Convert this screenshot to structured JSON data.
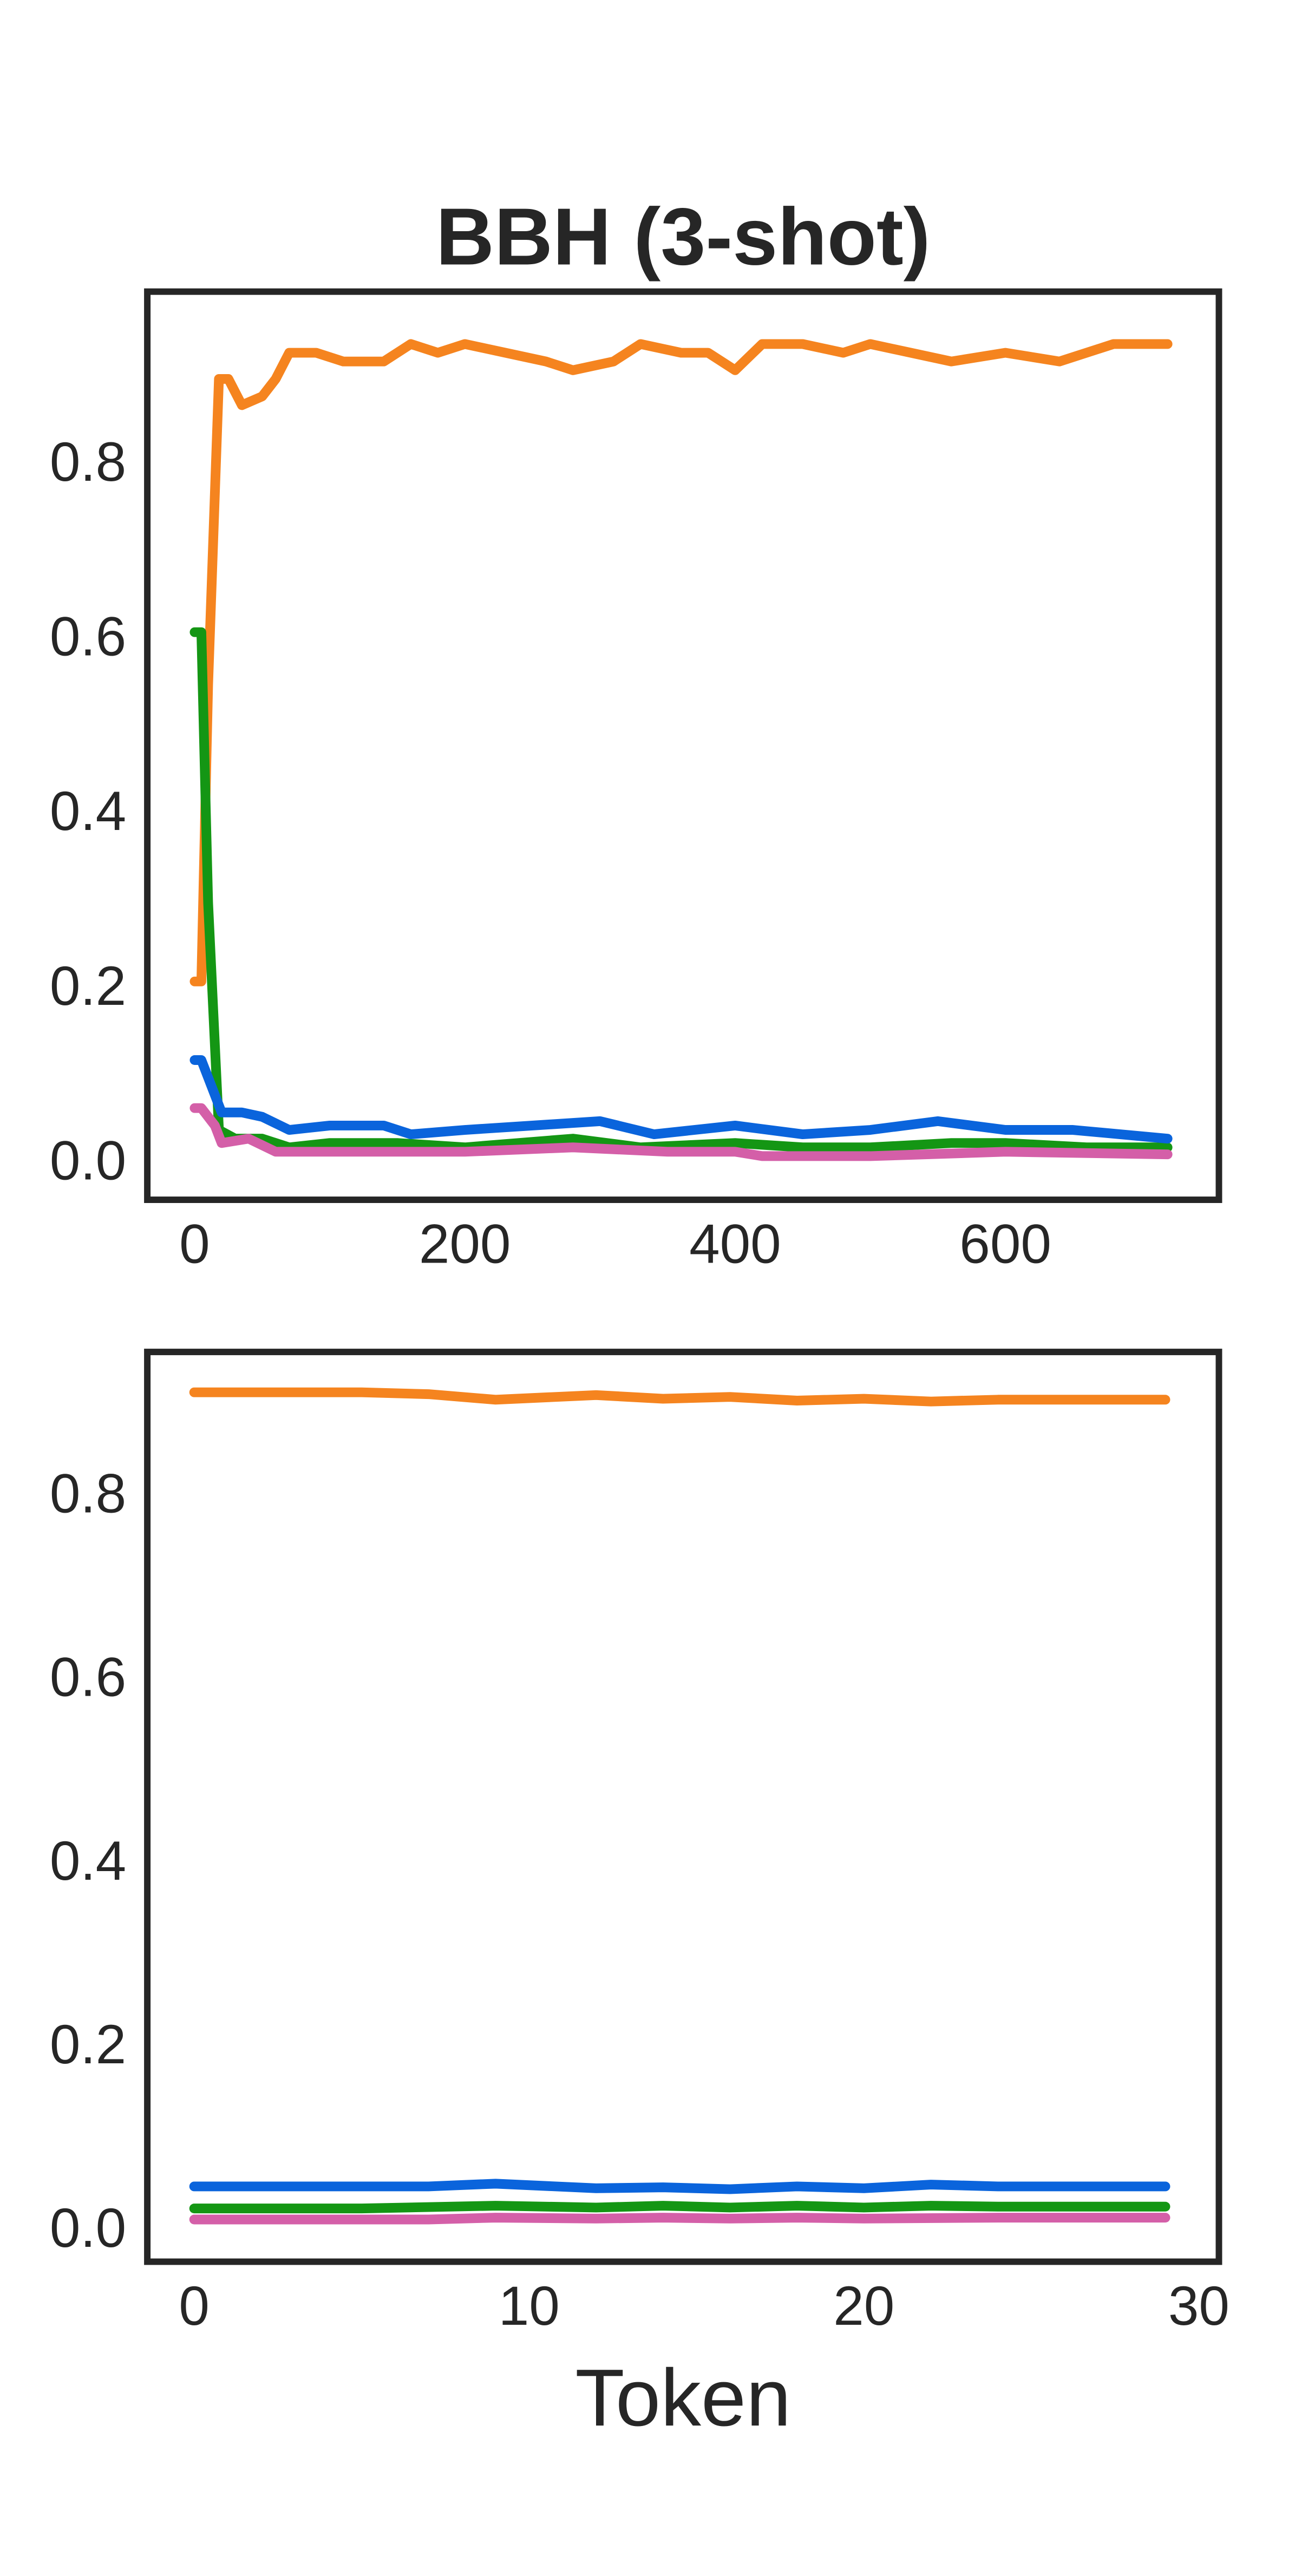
{
  "chart_data": [
    {
      "type": "line",
      "title": "BBH (3-shot)",
      "xlim": [
        -35,
        758
      ],
      "ylim": [
        -0.04,
        1.0
      ],
      "xticks": [
        0,
        200,
        400,
        600
      ],
      "yticks": [
        {
          "value": 0,
          "label": "0.0"
        },
        0.2,
        0.4,
        0.6,
        0.8
      ],
      "series": [
        {
          "color": "#f5841f",
          "x": [
            0,
            5,
            10,
            18,
            25,
            35,
            50,
            60,
            70,
            90,
            110,
            140,
            160,
            180,
            200,
            230,
            260,
            280,
            310,
            330,
            360,
            380,
            400,
            420,
            450,
            480,
            500,
            530,
            560,
            600,
            640,
            680,
            720
          ],
          "values": [
            0.21,
            0.21,
            0.55,
            0.9,
            0.9,
            0.87,
            0.88,
            0.9,
            0.93,
            0.93,
            0.92,
            0.92,
            0.94,
            0.93,
            0.94,
            0.93,
            0.92,
            0.91,
            0.92,
            0.94,
            0.93,
            0.93,
            0.91,
            0.94,
            0.94,
            0.93,
            0.94,
            0.93,
            0.92,
            0.93,
            0.92,
            0.94,
            0.94
          ]
        },
        {
          "color": "#149614",
          "x": [
            0,
            5,
            10,
            18,
            30,
            50,
            70,
            100,
            150,
            200,
            280,
            330,
            400,
            450,
            500,
            560,
            600,
            660,
            720
          ],
          "values": [
            0.61,
            0.61,
            0.3,
            0.04,
            0.03,
            0.03,
            0.02,
            0.025,
            0.025,
            0.02,
            0.03,
            0.02,
            0.025,
            0.02,
            0.02,
            0.025,
            0.025,
            0.02,
            0.02
          ]
        },
        {
          "color": "#0a64dc",
          "x": [
            0,
            5,
            10,
            20,
            35,
            50,
            70,
            100,
            140,
            160,
            200,
            250,
            300,
            340,
            400,
            450,
            500,
            550,
            600,
            650,
            720
          ],
          "values": [
            0.12,
            0.12,
            0.1,
            0.06,
            0.06,
            0.055,
            0.04,
            0.045,
            0.045,
            0.035,
            0.04,
            0.045,
            0.05,
            0.035,
            0.045,
            0.035,
            0.04,
            0.05,
            0.04,
            0.04,
            0.03
          ]
        },
        {
          "color": "#d45fa8",
          "x": [
            0,
            5,
            15,
            20,
            40,
            60,
            100,
            200,
            280,
            350,
            400,
            420,
            500,
            600,
            720
          ],
          "values": [
            0.065,
            0.065,
            0.045,
            0.025,
            0.03,
            0.015,
            0.015,
            0.015,
            0.02,
            0.015,
            0.015,
            0.01,
            0.01,
            0.015,
            0.012
          ]
        }
      ]
    },
    {
      "type": "line",
      "x_label": "Token",
      "xlim": [
        -1.4,
        30.6
      ],
      "ylim": [
        -0.032,
        0.959
      ],
      "xticks": [
        0,
        10,
        20,
        30
      ],
      "yticks": [
        {
          "value": 0,
          "label": "0.0"
        },
        0.2,
        0.4,
        0.6,
        0.8
      ],
      "series": [
        {
          "color": "#f5841f",
          "x": [
            0,
            5,
            7,
            9,
            12,
            14,
            16,
            18,
            20,
            22,
            24,
            29
          ],
          "values": [
            0.915,
            0.915,
            0.913,
            0.907,
            0.912,
            0.908,
            0.91,
            0.906,
            0.908,
            0.905,
            0.907,
            0.907
          ]
        },
        {
          "color": "#0a64dc",
          "x": [
            0,
            7,
            9,
            12,
            14,
            16,
            18,
            20,
            22,
            24,
            29
          ],
          "values": [
            0.05,
            0.05,
            0.053,
            0.048,
            0.049,
            0.047,
            0.05,
            0.048,
            0.052,
            0.05,
            0.05
          ]
        },
        {
          "color": "#149614",
          "x": [
            0,
            5,
            9,
            12,
            14,
            16,
            18,
            20,
            22,
            24,
            29
          ],
          "values": [
            0.026,
            0.026,
            0.029,
            0.027,
            0.029,
            0.027,
            0.029,
            0.027,
            0.029,
            0.028,
            0.028
          ]
        },
        {
          "color": "#d45fa8",
          "x": [
            0,
            7,
            9,
            12,
            14,
            16,
            18,
            20,
            24,
            29
          ],
          "values": [
            0.014,
            0.014,
            0.016,
            0.015,
            0.016,
            0.015,
            0.016,
            0.015,
            0.016,
            0.016
          ]
        }
      ]
    }
  ]
}
